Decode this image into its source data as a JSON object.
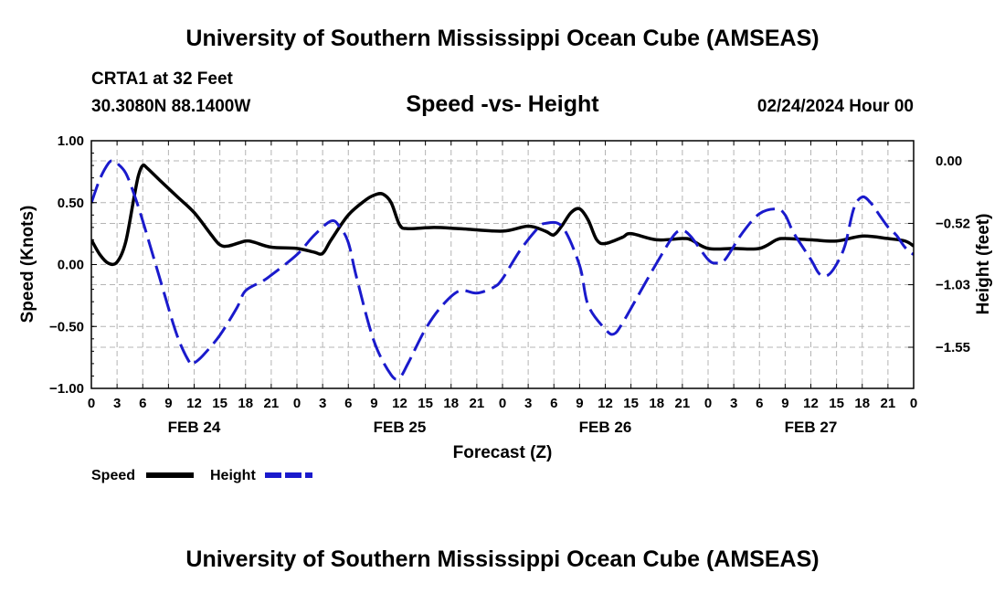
{
  "header": {
    "title": "University of Southern Mississippi Ocean Cube (AMSEAS)",
    "station": "CRTA1 at 32 Feet",
    "location": "30.3080N  88.1400W",
    "date": "02/24/2024 Hour 00"
  },
  "footer": {
    "title": "University of Southern Mississippi Ocean Cube (AMSEAS)"
  },
  "colors": {
    "speed": "#000000",
    "height": "#1a1acc",
    "grid": "#b4b4b4"
  },
  "chart_data": {
    "type": "line",
    "title": "Speed -vs- Height",
    "xlabel": "Forecast (Z)",
    "ylabel_left": "Speed (Knots)",
    "ylabel_right": "Height (feet)",
    "x_range_hours": [
      0,
      96
    ],
    "left_ylim": [
      -1.0,
      1.0
    ],
    "left_ticks": [
      "1.00",
      "0.50",
      "0.00",
      "-0.50",
      "-1.00"
    ],
    "right_ticks": [
      {
        "label": "0.00",
        "value": 0.0
      },
      {
        "label": "-0.52",
        "value": -0.52
      },
      {
        "label": "-1.03",
        "value": -1.03
      },
      {
        "label": "-1.55",
        "value": -1.55
      }
    ],
    "x_tick_labels": [
      "0",
      "3",
      "6",
      "9",
      "12",
      "15",
      "18",
      "21",
      "0",
      "3",
      "6",
      "9",
      "12",
      "15",
      "18",
      "21",
      "0",
      "3",
      "6",
      "9",
      "12",
      "15",
      "18",
      "21",
      "0",
      "3",
      "6",
      "9",
      "12",
      "15",
      "18",
      "21",
      "0"
    ],
    "date_labels": [
      {
        "label": "FEB 24",
        "hour": 12
      },
      {
        "label": "FEB 25",
        "hour": 36
      },
      {
        "label": "FEB 26",
        "hour": 60
      },
      {
        "label": "FEB 27",
        "hour": 84
      }
    ],
    "series": [
      {
        "name": "Speed",
        "axis": "left",
        "style": "solid",
        "points": [
          [
            0,
            0.2
          ],
          [
            1,
            0.08
          ],
          [
            2,
            0.01
          ],
          [
            3,
            0.02
          ],
          [
            4,
            0.18
          ],
          [
            5,
            0.55
          ],
          [
            5.5,
            0.72
          ],
          [
            6,
            0.8
          ],
          [
            6.5,
            0.78
          ],
          [
            8,
            0.68
          ],
          [
            10,
            0.55
          ],
          [
            12,
            0.42
          ],
          [
            14,
            0.24
          ],
          [
            15,
            0.16
          ],
          [
            16,
            0.15
          ],
          [
            18,
            0.19
          ],
          [
            19,
            0.18
          ],
          [
            21,
            0.14
          ],
          [
            24,
            0.13
          ],
          [
            26,
            0.1
          ],
          [
            27,
            0.09
          ],
          [
            28,
            0.2
          ],
          [
            30,
            0.4
          ],
          [
            32,
            0.52
          ],
          [
            33,
            0.56
          ],
          [
            34,
            0.57
          ],
          [
            35,
            0.5
          ],
          [
            36,
            0.32
          ],
          [
            37,
            0.29
          ],
          [
            40,
            0.3
          ],
          [
            43,
            0.29
          ],
          [
            48,
            0.27
          ],
          [
            51,
            0.31
          ],
          [
            53,
            0.27
          ],
          [
            54,
            0.24
          ],
          [
            55,
            0.32
          ],
          [
            56,
            0.42
          ],
          [
            57,
            0.45
          ],
          [
            58,
            0.36
          ],
          [
            59,
            0.2
          ],
          [
            60,
            0.17
          ],
          [
            62,
            0.22
          ],
          [
            63,
            0.25
          ],
          [
            66,
            0.2
          ],
          [
            69,
            0.21
          ],
          [
            70,
            0.2
          ],
          [
            72,
            0.13
          ],
          [
            75,
            0.13
          ],
          [
            78,
            0.13
          ],
          [
            80,
            0.2
          ],
          [
            81,
            0.21
          ],
          [
            84,
            0.2
          ],
          [
            87,
            0.19
          ],
          [
            90,
            0.23
          ],
          [
            93,
            0.21
          ],
          [
            95,
            0.19
          ],
          [
            96,
            0.15
          ]
        ]
      },
      {
        "name": "Height",
        "axis": "right",
        "style": "dashed",
        "points": [
          [
            0,
            -0.35
          ],
          [
            1,
            -0.15
          ],
          [
            2,
            -0.02
          ],
          [
            2.5,
            0.0
          ],
          [
            3,
            -0.02
          ],
          [
            4,
            -0.1
          ],
          [
            5,
            -0.28
          ],
          [
            6,
            -0.5
          ],
          [
            8,
            -0.98
          ],
          [
            10,
            -1.45
          ],
          [
            11.5,
            -1.68
          ],
          [
            12,
            -1.68
          ],
          [
            13,
            -1.62
          ],
          [
            15,
            -1.45
          ],
          [
            17,
            -1.22
          ],
          [
            18,
            -1.08
          ],
          [
            20,
            -1.0
          ],
          [
            21,
            -0.95
          ],
          [
            24,
            -0.78
          ],
          [
            26,
            -0.62
          ],
          [
            28,
            -0.5
          ],
          [
            29,
            -0.55
          ],
          [
            30,
            -0.68
          ],
          [
            31,
            -0.98
          ],
          [
            33,
            -1.5
          ],
          [
            35,
            -1.78
          ],
          [
            36,
            -1.8
          ],
          [
            37,
            -1.68
          ],
          [
            39,
            -1.4
          ],
          [
            41,
            -1.2
          ],
          [
            43,
            -1.08
          ],
          [
            45,
            -1.1
          ],
          [
            47,
            -1.05
          ],
          [
            48,
            -0.98
          ],
          [
            50,
            -0.75
          ],
          [
            52,
            -0.57
          ],
          [
            53,
            -0.52
          ],
          [
            55,
            -0.55
          ],
          [
            57,
            -0.87
          ],
          [
            58,
            -1.2
          ],
          [
            60,
            -1.4
          ],
          [
            61,
            -1.44
          ],
          [
            62,
            -1.35
          ],
          [
            64,
            -1.1
          ],
          [
            66,
            -0.85
          ],
          [
            68,
            -0.62
          ],
          [
            69,
            -0.58
          ],
          [
            70,
            -0.63
          ],
          [
            72,
            -0.82
          ],
          [
            73,
            -0.85
          ],
          [
            74,
            -0.82
          ],
          [
            76,
            -0.6
          ],
          [
            78,
            -0.44
          ],
          [
            80,
            -0.4
          ],
          [
            81,
            -0.45
          ],
          [
            82,
            -0.6
          ],
          [
            84,
            -0.82
          ],
          [
            85,
            -0.94
          ],
          [
            86,
            -0.95
          ],
          [
            87,
            -0.86
          ],
          [
            88,
            -0.7
          ],
          [
            89,
            -0.4
          ],
          [
            90,
            -0.3
          ],
          [
            91,
            -0.35
          ],
          [
            92,
            -0.45
          ],
          [
            93,
            -0.55
          ],
          [
            94,
            -0.62
          ],
          [
            95,
            -0.72
          ],
          [
            96,
            -0.78
          ]
        ]
      }
    ],
    "legend": [
      {
        "label": "Speed",
        "style": "solid"
      },
      {
        "label": "Height",
        "style": "dashed"
      }
    ]
  }
}
